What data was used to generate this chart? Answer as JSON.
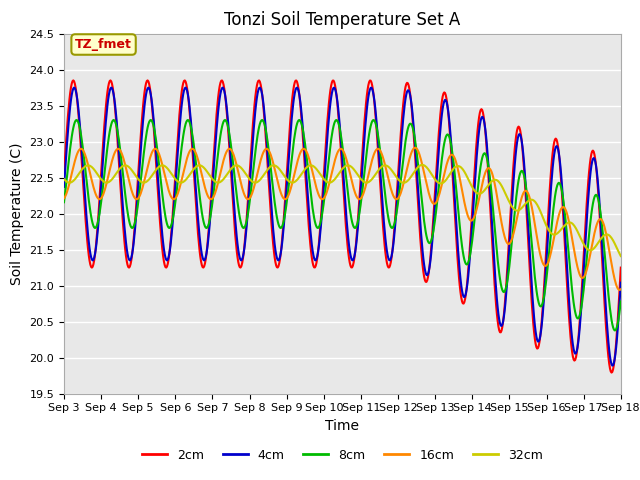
{
  "title": "Tonzi Soil Temperature Set A",
  "xlabel": "Time",
  "ylabel": "Soil Temperature (C)",
  "ylim": [
    19.5,
    24.5
  ],
  "yticks": [
    19.5,
    20.0,
    20.5,
    21.0,
    21.5,
    22.0,
    22.5,
    23.0,
    23.5,
    24.0,
    24.5
  ],
  "xtick_labels": [
    "Sep 3",
    "Sep 4",
    "Sep 5",
    "Sep 6",
    "Sep 7",
    "Sep 8",
    "Sep 9",
    "Sep 10",
    "Sep 11",
    "Sep 12",
    "Sep 13",
    "Sep 14",
    "Sep 15",
    "Sep 16",
    "Sep 17",
    "Sep 18"
  ],
  "bg_color": "#e8e8e8",
  "fig_color": "#ffffff",
  "grid_color": "#ffffff",
  "legend_label": "TZ_fmet",
  "legend_box_color": "#ffffcc",
  "legend_box_edge": "#999900",
  "line_colors": [
    "#ff0000",
    "#0000cc",
    "#00bb00",
    "#ff8800",
    "#cccc00"
  ],
  "line_labels": [
    "2cm",
    "4cm",
    "8cm",
    "16cm",
    "32cm"
  ],
  "line_width": 1.5
}
